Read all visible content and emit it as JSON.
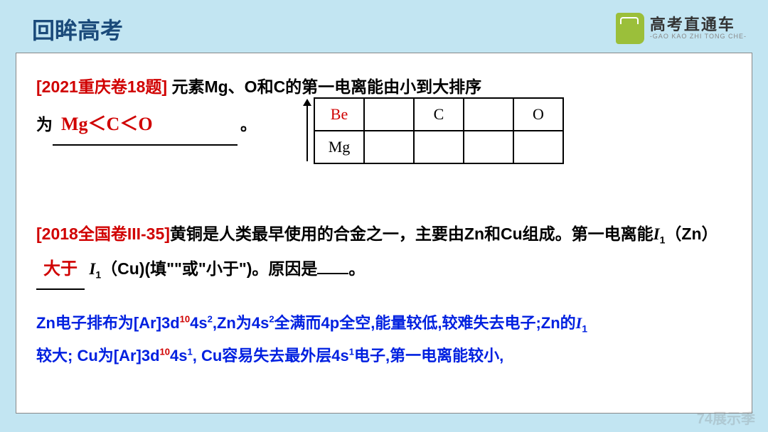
{
  "header": {
    "title": "回眸高考",
    "logo_cn": "高考直通车",
    "logo_en": "-GAO KAO ZHI TONG CHE-"
  },
  "q1": {
    "tag": "[2021重庆卷18题]",
    "text1": " 元素Mg、O和C的第一电离能由小到大排序",
    "prefix2": "为",
    "answer": "Mg＜C＜O",
    "suffix2": "。"
  },
  "table": {
    "r1c1": "Be",
    "r1c2": "",
    "r1c3": "C",
    "r1c4": "",
    "r1c5": "O",
    "r2c1": "Mg",
    "r2c2": "",
    "r2c3": "",
    "r2c4": "",
    "r2c5": ""
  },
  "q2": {
    "tag": "[2018全国卷III-35]",
    "seg1": "黄铜是人类最早使用的合金之一，主要由Zn和Cu组成。第一电离能",
    "i1": "I",
    "sub1": "1",
    "zn": "（Zn）",
    "blank_ans": "大于",
    "i2": "I",
    "sub2": "1",
    "cu": "（Cu)(填\"\"或\"小于\")。原因是",
    "tail": "。"
  },
  "ans": {
    "l1a": "Zn电子排布为[Ar]3d",
    "l1b": "10",
    "l1c": "4s",
    "l1d": "2",
    "l1e": ",Zn为4s",
    "l1f": "2",
    "l1g": "全满而4p全空,能量较低,较难失去电子;Zn的",
    "l1h": "I",
    "l1i": "1",
    "l2a": "较大; Cu为[Ar]3d",
    "l2b": "10",
    "l2c": "4s",
    "l2d": "1",
    "l2e": ", Cu容易失去最外层4s",
    "l2f": "1",
    "l2g": "电子,第一电离能较小,"
  },
  "watermark": "74展示季"
}
